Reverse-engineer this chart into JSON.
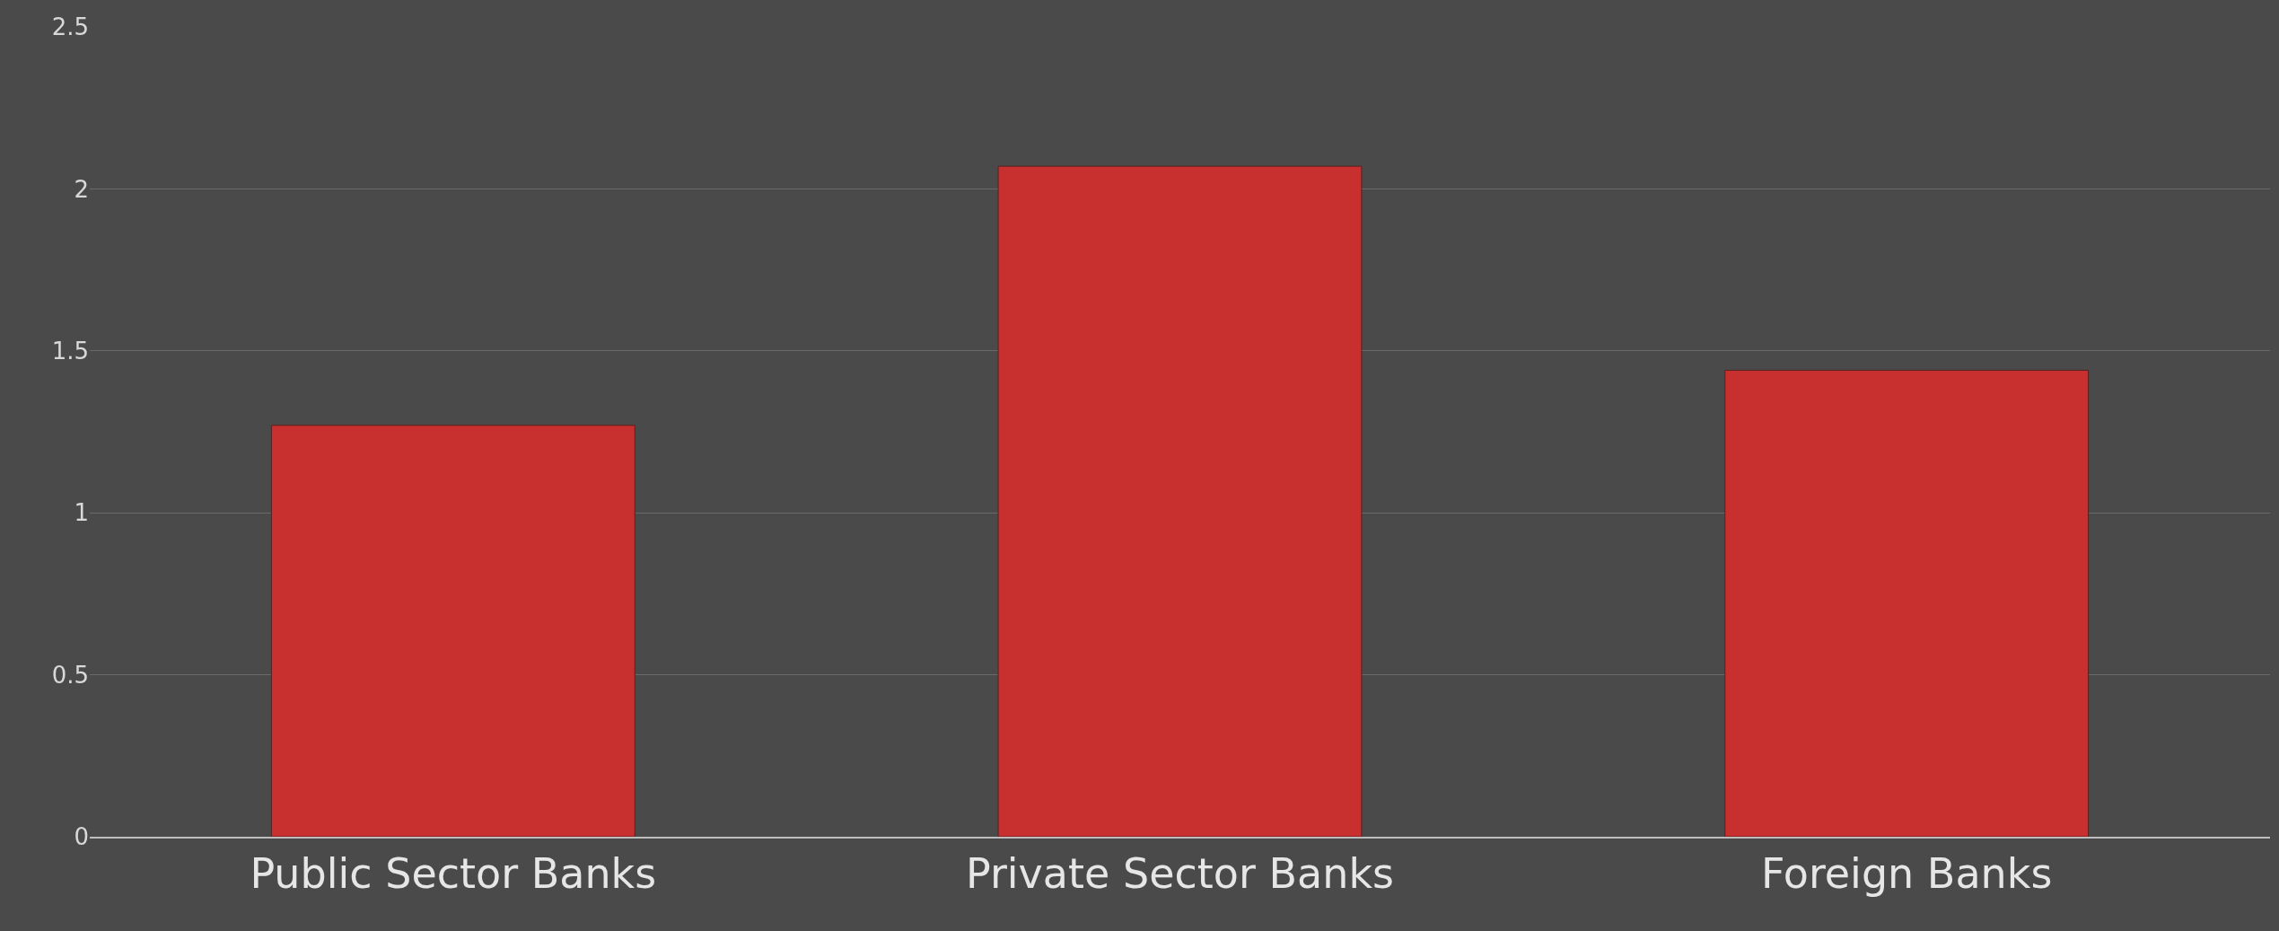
{
  "chart_data": {
    "type": "bar",
    "categories": [
      "Public Sector Banks",
      "Private Sector Banks",
      "Foreign Banks"
    ],
    "values": [
      1.27,
      2.07,
      1.44
    ],
    "color": "#c8302f",
    "ylim": [
      0,
      2.5
    ],
    "yticks": [
      0,
      0.5,
      1,
      1.5,
      2,
      2.5
    ],
    "grid": "y"
  }
}
